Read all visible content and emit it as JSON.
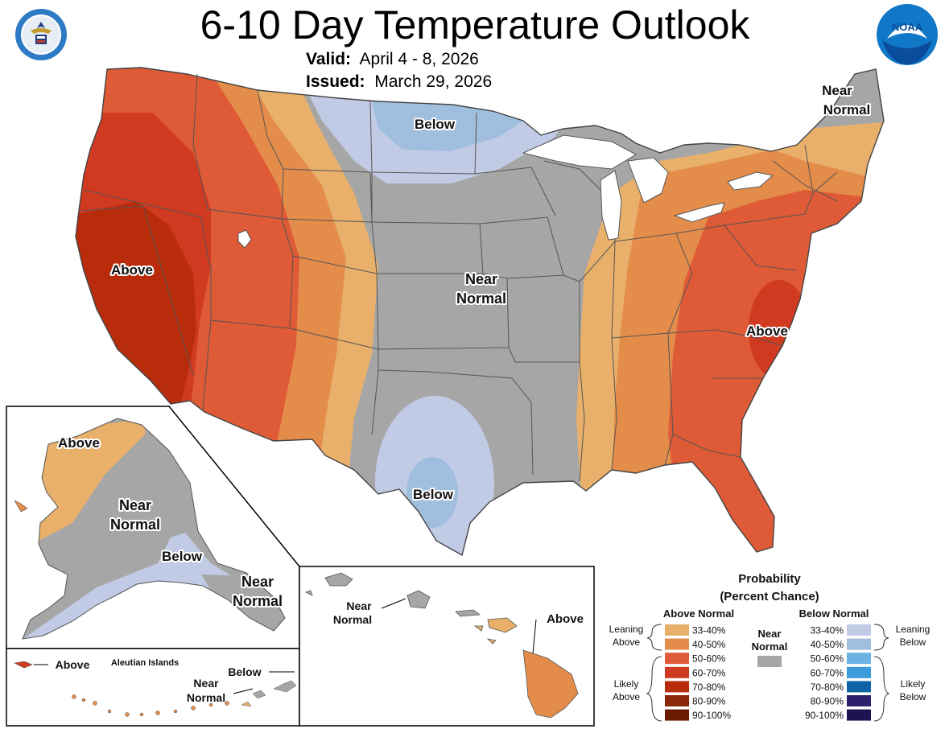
{
  "header": {
    "title": "6-10 Day Temperature Outlook",
    "valid_label": "Valid:",
    "valid_value": "April 4 - 8, 2026",
    "issued_label": "Issued:",
    "issued_value": "March 29, 2026",
    "left_logo_icon": "us-department-of-commerce-seal-icon",
    "left_logo_lettering": "DEPARTMENT OF COMMERCE • UNITED STATES OF AMERICA",
    "right_logo_icon": "noaa-logo-icon",
    "right_logo_text": "NOAA"
  },
  "map_labels": {
    "conus_west": "Above",
    "conus_north": "Below",
    "conus_northeast_1": "Near",
    "conus_northeast_2": "Normal",
    "conus_center_1": "Near",
    "conus_center_2": "Normal",
    "conus_southeast": "Above",
    "conus_texas": "Below",
    "alaska_north": "Above",
    "alaska_center_1": "Near",
    "alaska_center_2": "Normal",
    "alaska_south": "Below",
    "alaska_panhandle_1": "Near",
    "alaska_panhandle_2": "Normal",
    "aleutians_title": "Aleutian Islands",
    "aleutians_west": "Above",
    "aleutians_east": "Below",
    "aleutians_mid_1": "Near",
    "aleutians_mid_2": "Normal",
    "hawaii_west_1": "Near",
    "hawaii_west_2": "Normal",
    "hawaii_east": "Above"
  },
  "legend": {
    "title_1": "Probability",
    "title_2": "(Percent Chance)",
    "above_header": "Above Normal",
    "below_header": "Below Normal",
    "near_1": "Near",
    "near_2": "Normal",
    "near_color": "#a6a6a6",
    "leaning_above_1": "Leaning",
    "leaning_above_2": "Above",
    "likely_above_1": "Likely",
    "likely_above_2": "Above",
    "leaning_below_1": "Leaning",
    "leaning_below_2": "Below",
    "likely_below_1": "Likely",
    "likely_below_2": "Below",
    "above": [
      {
        "range": "33-40%",
        "color": "#e8b06a"
      },
      {
        "range": "40-50%",
        "color": "#e48c4a"
      },
      {
        "range": "50-60%",
        "color": "#df5a36"
      },
      {
        "range": "60-70%",
        "color": "#d03a20"
      },
      {
        "range": "70-80%",
        "color": "#b82c0c"
      },
      {
        "range": "80-90%",
        "color": "#8c2608"
      },
      {
        "range": "90-100%",
        "color": "#6a1a00"
      }
    ],
    "below": [
      {
        "range": "33-40%",
        "color": "#c2cbe6"
      },
      {
        "range": "40-50%",
        "color": "#a0bede"
      },
      {
        "range": "50-60%",
        "color": "#6ab2e2"
      },
      {
        "range": "60-70%",
        "color": "#3b9bdb"
      },
      {
        "range": "70-80%",
        "color": "#0f63a6"
      },
      {
        "range": "80-90%",
        "color": "#2e1e6e"
      },
      {
        "range": "90-100%",
        "color": "#1c1450"
      }
    ]
  }
}
